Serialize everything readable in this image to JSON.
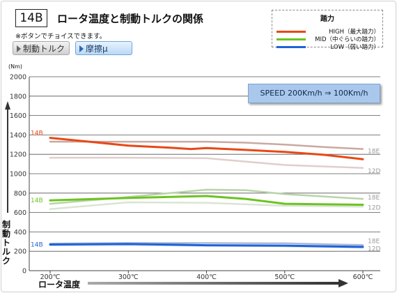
{
  "header": {
    "badge": "14B",
    "title": "ロータ温度と制動トルクの関係",
    "note": "※ボタンでチョイスできます。"
  },
  "buttons": {
    "torque": "制動トルク",
    "friction": "摩擦μ"
  },
  "legend": {
    "title": "踏力",
    "items": [
      {
        "label": "HIGH（最大踏力）",
        "color": "#e84815"
      },
      {
        "label": "MID（中ぐらいの踏力）",
        "color": "#6cc321"
      },
      {
        "label": "LOW（弱い踏力）",
        "color": "#1f63d8"
      }
    ]
  },
  "speed_box": "SPEED  200Km/h ⇒ 100Km/h",
  "chart_data": {
    "type": "line",
    "xlabel": "ロータ温度",
    "ylabel": "制動トルク",
    "yunit": "(Nm)",
    "x": [
      200,
      300,
      400,
      500,
      600
    ],
    "x_tick_labels": [
      "200℃",
      "300℃",
      "400℃",
      "500℃",
      "600℃"
    ],
    "y_tick_labels": [
      "0",
      "200",
      "400",
      "600",
      "800",
      "1000",
      "1200",
      "1400",
      "1600",
      "1800",
      "2000"
    ],
    "ylim": [
      0,
      2000
    ],
    "xlim": [
      200,
      600
    ],
    "grid": true,
    "series": [
      {
        "name": "14B",
        "group": "HIGH",
        "color": "#e84815",
        "width": 3,
        "points": [
          [
            200,
            1370
          ],
          [
            250,
            1330
          ],
          [
            300,
            1290
          ],
          [
            350,
            1270
          ],
          [
            380,
            1255
          ],
          [
            400,
            1265
          ],
          [
            450,
            1245
          ],
          [
            500,
            1225
          ],
          [
            550,
            1195
          ],
          [
            600,
            1150
          ]
        ]
      },
      {
        "name": "18E",
        "group": "HIGH",
        "color": "#c9a9a0",
        "width": 2.5,
        "points": [
          [
            200,
            1330
          ],
          [
            300,
            1330
          ],
          [
            400,
            1330
          ],
          [
            450,
            1320
          ],
          [
            500,
            1300
          ],
          [
            550,
            1275
          ],
          [
            600,
            1255
          ]
        ]
      },
      {
        "name": "12D",
        "group": "HIGH",
        "color": "#e0cfcb",
        "width": 2.5,
        "points": [
          [
            200,
            1165
          ],
          [
            300,
            1165
          ],
          [
            400,
            1160
          ],
          [
            500,
            1090
          ],
          [
            600,
            1060
          ]
        ]
      },
      {
        "name": "14B",
        "group": "MID",
        "color": "#6cc321",
        "width": 3,
        "points": [
          [
            200,
            725
          ],
          [
            300,
            750
          ],
          [
            400,
            770
          ],
          [
            450,
            740
          ],
          [
            500,
            690
          ],
          [
            600,
            680
          ]
        ]
      },
      {
        "name": "18E",
        "group": "MID",
        "color": "#b8d4a8",
        "width": 2.5,
        "points": [
          [
            200,
            690
          ],
          [
            300,
            760
          ],
          [
            400,
            835
          ],
          [
            450,
            830
          ],
          [
            500,
            790
          ],
          [
            600,
            740
          ]
        ]
      },
      {
        "name": "12D",
        "group": "MID",
        "color": "#d9e5d2",
        "width": 2.5,
        "points": [
          [
            200,
            635
          ],
          [
            300,
            705
          ],
          [
            400,
            700
          ],
          [
            500,
            670
          ],
          [
            600,
            660
          ]
        ]
      },
      {
        "name": "14B",
        "group": "LOW",
        "color": "#1f63d8",
        "width": 3,
        "points": [
          [
            200,
            270
          ],
          [
            300,
            275
          ],
          [
            400,
            262
          ],
          [
            500,
            258
          ],
          [
            600,
            245
          ]
        ]
      },
      {
        "name": "18E",
        "group": "LOW",
        "color": "#a9b9d6",
        "width": 2.5,
        "points": [
          [
            200,
            280
          ],
          [
            300,
            285
          ],
          [
            400,
            285
          ],
          [
            500,
            282
          ],
          [
            600,
            265
          ]
        ]
      },
      {
        "name": "12D",
        "group": "LOW",
        "color": "#ccd6e6",
        "width": 2.5,
        "points": [
          [
            200,
            262
          ],
          [
            300,
            265
          ],
          [
            400,
            258
          ],
          [
            500,
            252
          ],
          [
            600,
            238
          ]
        ]
      }
    ],
    "left_labels": [
      {
        "text": "14B",
        "group": "HIGH",
        "y": 1420,
        "color": "#e84815"
      },
      {
        "text": "14B",
        "group": "MID",
        "y": 725,
        "color": "#6cc321"
      },
      {
        "text": "14B",
        "group": "LOW",
        "y": 270,
        "color": "#1f63d8"
      }
    ],
    "right_labels": [
      {
        "text": "18E",
        "group": "HIGH",
        "y": 1235
      },
      {
        "text": "12D",
        "group": "HIGH",
        "y": 1030
      },
      {
        "text": "18E",
        "group": "MID",
        "y": 755
      },
      {
        "text": "12D",
        "group": "MID",
        "y": 650
      },
      {
        "text": "18E",
        "group": "LOW",
        "y": 305
      },
      {
        "text": "12D",
        "group": "LOW",
        "y": 225
      }
    ]
  }
}
